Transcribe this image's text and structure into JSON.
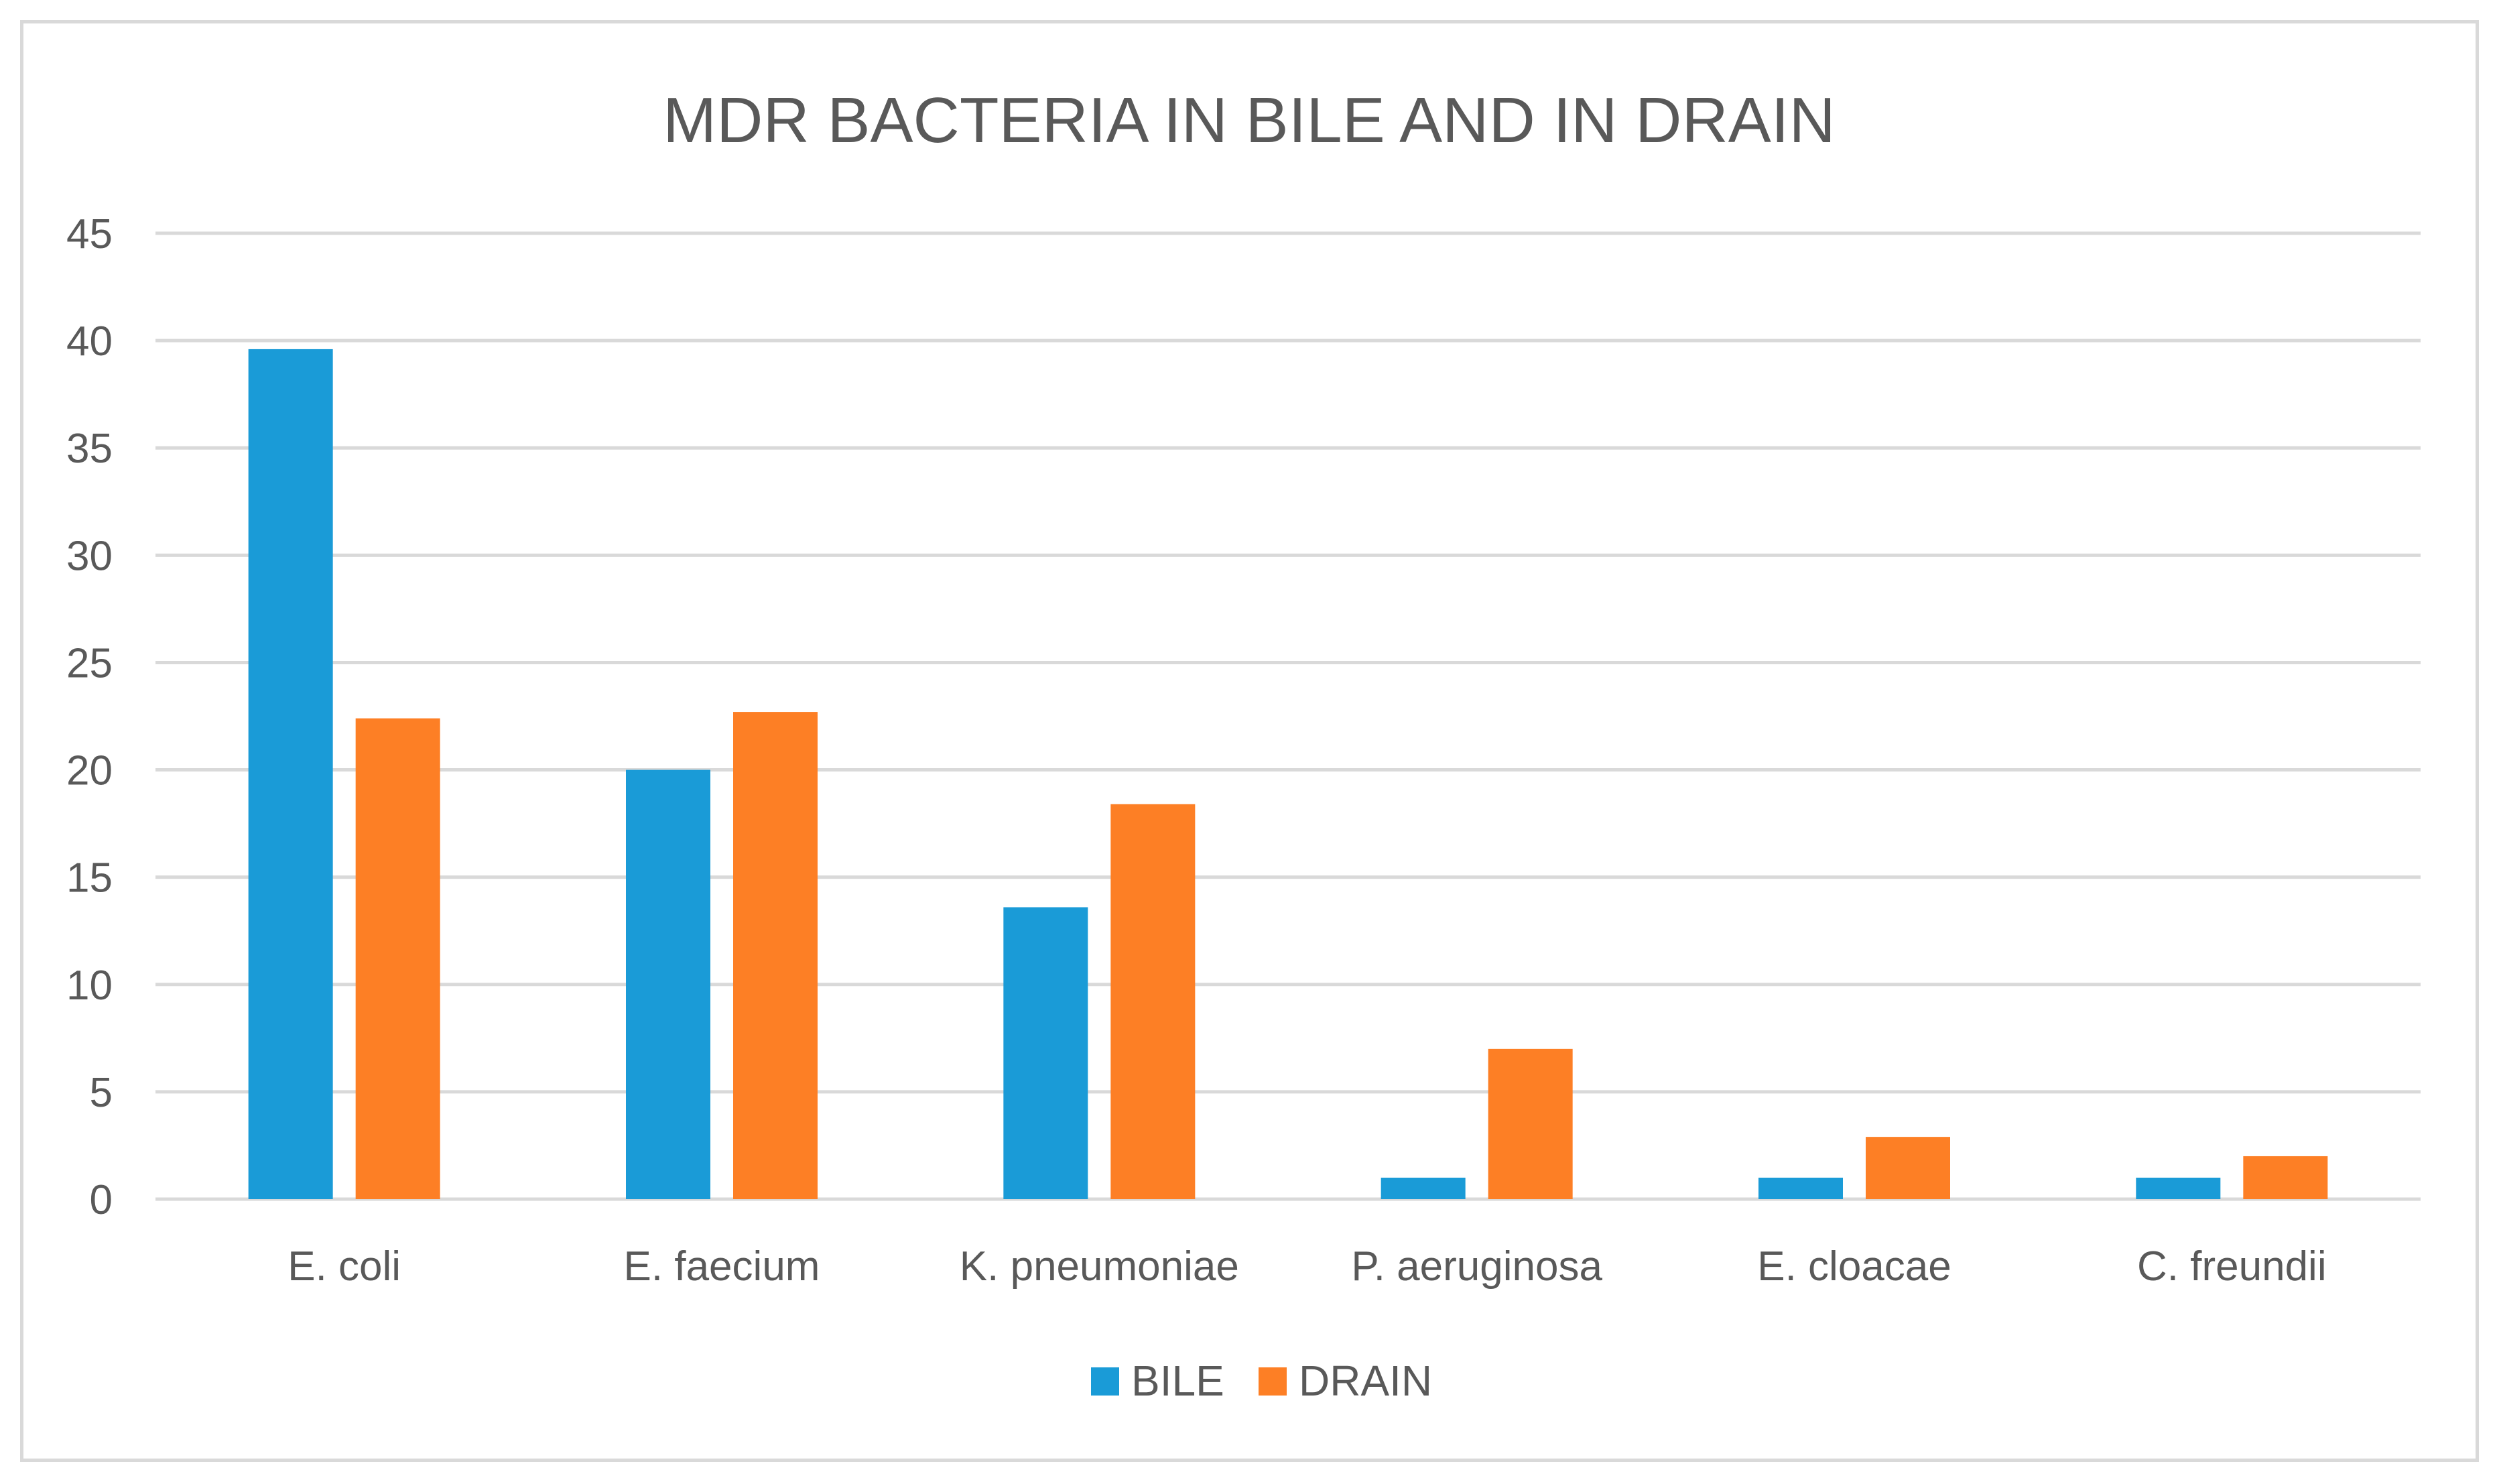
{
  "chart_data": {
    "type": "bar",
    "title": "MDR BACTERIA IN BILE AND IN DRAIN",
    "xlabel": "",
    "ylabel": "",
    "ylim": [
      0,
      45
    ],
    "yticks": [
      0,
      5,
      10,
      15,
      20,
      25,
      30,
      35,
      40,
      45
    ],
    "grid": true,
    "legend_position": "bottom",
    "categories": [
      "E. coli",
      "E. faecium",
      "K. pneumoniae",
      "P. aeruginosa",
      "E. cloacae",
      "C. freundii"
    ],
    "series": [
      {
        "name": "BILE",
        "color": "#1a9bd7",
        "values": [
          39.6,
          20,
          13.6,
          1,
          1,
          1
        ]
      },
      {
        "name": "DRAIN",
        "color": "#fd7f25",
        "values": [
          22.4,
          22.7,
          18.4,
          7,
          2.9,
          2
        ]
      }
    ],
    "colors": {
      "grid": "#d9d9d9",
      "text": "#595959",
      "border": "#d9d9d9"
    }
  }
}
